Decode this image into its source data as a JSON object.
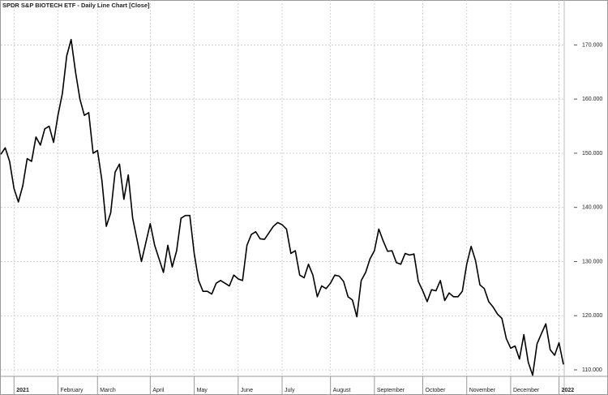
{
  "chart_data": {
    "type": "line",
    "title": "SPDR S&P BIOTECH ETF - Daily Line Chart [Close]",
    "color": "#000000",
    "grid": true,
    "categories": [
      null,
      null,
      null,
      "2021",
      null,
      null,
      null,
      null,
      null,
      null,
      null,
      null,
      null,
      "February",
      null,
      null,
      null,
      null,
      null,
      null,
      null,
      null,
      "March",
      null,
      null,
      null,
      null,
      null,
      null,
      null,
      null,
      null,
      null,
      null,
      "April",
      null,
      null,
      null,
      null,
      null,
      null,
      null,
      null,
      null,
      "May",
      null,
      null,
      null,
      null,
      null,
      null,
      null,
      null,
      null,
      "June",
      null,
      null,
      null,
      null,
      null,
      null,
      null,
      null,
      null,
      "July",
      null,
      null,
      null,
      null,
      null,
      null,
      null,
      null,
      null,
      null,
      "August",
      null,
      null,
      null,
      null,
      null,
      null,
      null,
      null,
      null,
      "September",
      null,
      null,
      null,
      null,
      null,
      null,
      null,
      null,
      null,
      null,
      "October",
      null,
      null,
      null,
      null,
      null,
      null,
      null,
      null,
      null,
      "November",
      null,
      null,
      null,
      null,
      null,
      null,
      null,
      null,
      null,
      "December",
      null,
      null,
      null,
      null,
      null,
      null,
      null,
      null,
      null,
      null,
      "2022",
      null
    ],
    "values": [
      149.8,
      151,
      148.5,
      143.5,
      141,
      144,
      149,
      148.5,
      153,
      151.5,
      154.5,
      155,
      152,
      157,
      161,
      168,
      171,
      165,
      160,
      157,
      157.5,
      150,
      150.5,
      145,
      136.5,
      139,
      146.5,
      148,
      141.5,
      146,
      138,
      134,
      130,
      133.5,
      137,
      133,
      130.5,
      128,
      133,
      129,
      132,
      138,
      138.5,
      138.5,
      131.5,
      126.5,
      124.5,
      124.5,
      124,
      126,
      126.5,
      126,
      125.5,
      127.5,
      126.8,
      126.5,
      133,
      135,
      135.5,
      134.2,
      134.1,
      135.3,
      136.5,
      137.2,
      136.8,
      136,
      131.5,
      132,
      127.5,
      127,
      129.5,
      127.5,
      123.5,
      125.5,
      125,
      126,
      127.5,
      127.3,
      126.3,
      123.5,
      122.9,
      119.8,
      126.5,
      128,
      130.5,
      132,
      136,
      133.8,
      131.9,
      132,
      129.8,
      129.5,
      131.5,
      131.2,
      131.4,
      126.3,
      124.6,
      122.6,
      124.8,
      124.6,
      126.5,
      122.8,
      124.2,
      123.5,
      123.5,
      124.5,
      129.5,
      132.8,
      130.2,
      125.7,
      125,
      122.6,
      121.6,
      120.3,
      119.5,
      115.8,
      114,
      114.4,
      112,
      116.5,
      111.4,
      109,
      114.8,
      116.7,
      118.5,
      113.7,
      112.7,
      115,
      111
    ],
    "ylim": [
      108.8,
      178.3
    ],
    "yticks": [
      {
        "value": 110,
        "label": "110.000"
      },
      {
        "value": 120,
        "label": "120.000"
      },
      {
        "value": 130,
        "label": "130.000"
      },
      {
        "value": 140,
        "label": "140.000"
      },
      {
        "value": 150,
        "label": "150.000"
      },
      {
        "value": 160,
        "label": "160.000"
      },
      {
        "value": 170,
        "label": "170.000"
      }
    ]
  }
}
